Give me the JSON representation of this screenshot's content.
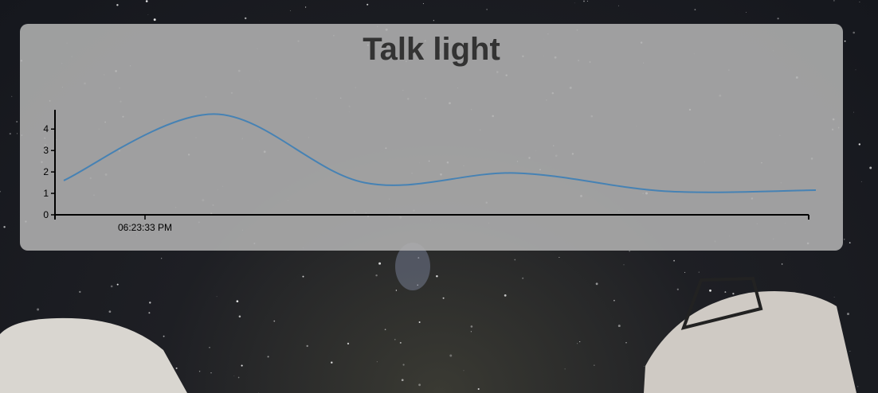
{
  "panel": {
    "title": "Talk light"
  },
  "chart_data": {
    "type": "line",
    "title": "Talk light",
    "xlabel": "",
    "ylabel": "",
    "x_tick_labels": [
      "06:23:33 PM"
    ],
    "y_ticks": [
      0,
      1,
      2,
      3,
      4
    ],
    "ylim": [
      0,
      4.9
    ],
    "grid": false,
    "series": [
      {
        "color": "#4682b4",
        "values": [
          1.6,
          4.7,
          1.5,
          1.95,
          1.1,
          1.15
        ]
      }
    ]
  }
}
